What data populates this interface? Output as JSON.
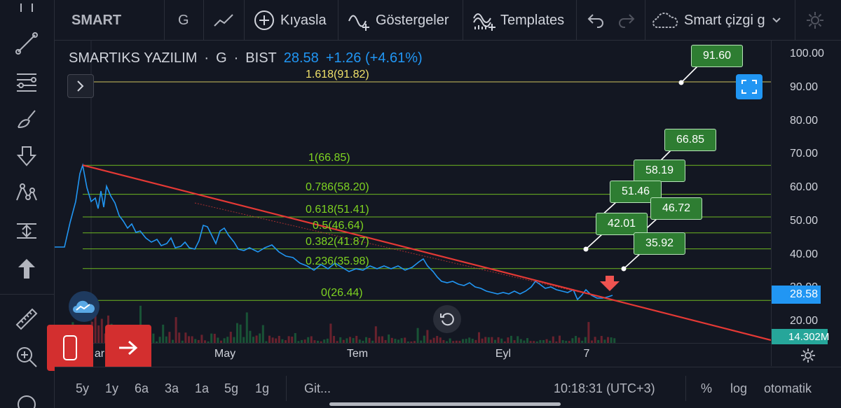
{
  "top_toolbar": {
    "symbol": "SMART",
    "interval": "G",
    "compare_label": "Kıyasla",
    "indicators_label": "Göstergeler",
    "templates_label": "Templates",
    "layout_label": "Smart çizgi g"
  },
  "legend": {
    "name": "SMARTIKS YAZILIM",
    "interval": "G",
    "exchange": "BIST",
    "separator": "·",
    "last": "28.58",
    "change": "+1.26 (+4.61%)"
  },
  "fib_levels": [
    {
      "label": "1.618(91.82)",
      "price": 91.82,
      "color": "#f0e16a"
    },
    {
      "label": "1(66.85)",
      "price": 66.85,
      "color": "#7ed321"
    },
    {
      "label": "0.786(58.20)",
      "price": 58.2,
      "color": "#7ed321"
    },
    {
      "label": "0.618(51.41)",
      "price": 51.41,
      "color": "#7ed321"
    },
    {
      "label": "0.5(46.64)",
      "price": 46.64,
      "color": "#7ed321"
    },
    {
      "label": "0.382(41.87)",
      "price": 41.87,
      "color": "#7ed321"
    },
    {
      "label": "0.236(35.98)",
      "price": 35.98,
      "color": "#7ed321"
    },
    {
      "label": "0(26.44)",
      "price": 26.44,
      "color": "#7ed321"
    }
  ],
  "callouts": [
    {
      "text": "91.60",
      "price": 91.6
    },
    {
      "text": "66.85",
      "price": 66.85
    },
    {
      "text": "58.19",
      "price": 58.19
    },
    {
      "text": "51.46",
      "price": 51.46
    },
    {
      "text": "46.72",
      "price": 46.72
    },
    {
      "text": "42.01",
      "price": 42.01
    },
    {
      "text": "35.92",
      "price": 35.92
    }
  ],
  "price_axis": {
    "ticks": [
      "100.00",
      "90.00",
      "80.00",
      "70.00",
      "60.00",
      "50.00",
      "40.00",
      "30.00",
      "20.00"
    ],
    "last_price": "28.58",
    "volume": "14.302M"
  },
  "time_axis": {
    "ticks": [
      "ar",
      "May",
      "Tem",
      "Eyl",
      "7"
    ]
  },
  "bottom_bar": {
    "ranges": [
      "5y",
      "1y",
      "6a",
      "3a",
      "1a",
      "5g",
      "1g"
    ],
    "goto": "Git...",
    "clock": "10:18:31 (UTC+3)",
    "percent": "%",
    "log": "log",
    "auto": "otomatik"
  },
  "colors": {
    "background": "#131722",
    "price_line": "#2196f3",
    "trend_line": "#e53935",
    "fib_gold": "#f0e16a",
    "fib_green": "#7ed321",
    "callout_bg": "#2e7d32",
    "accent_blue": "#2196f3",
    "red_button": "#d32f2f"
  }
}
